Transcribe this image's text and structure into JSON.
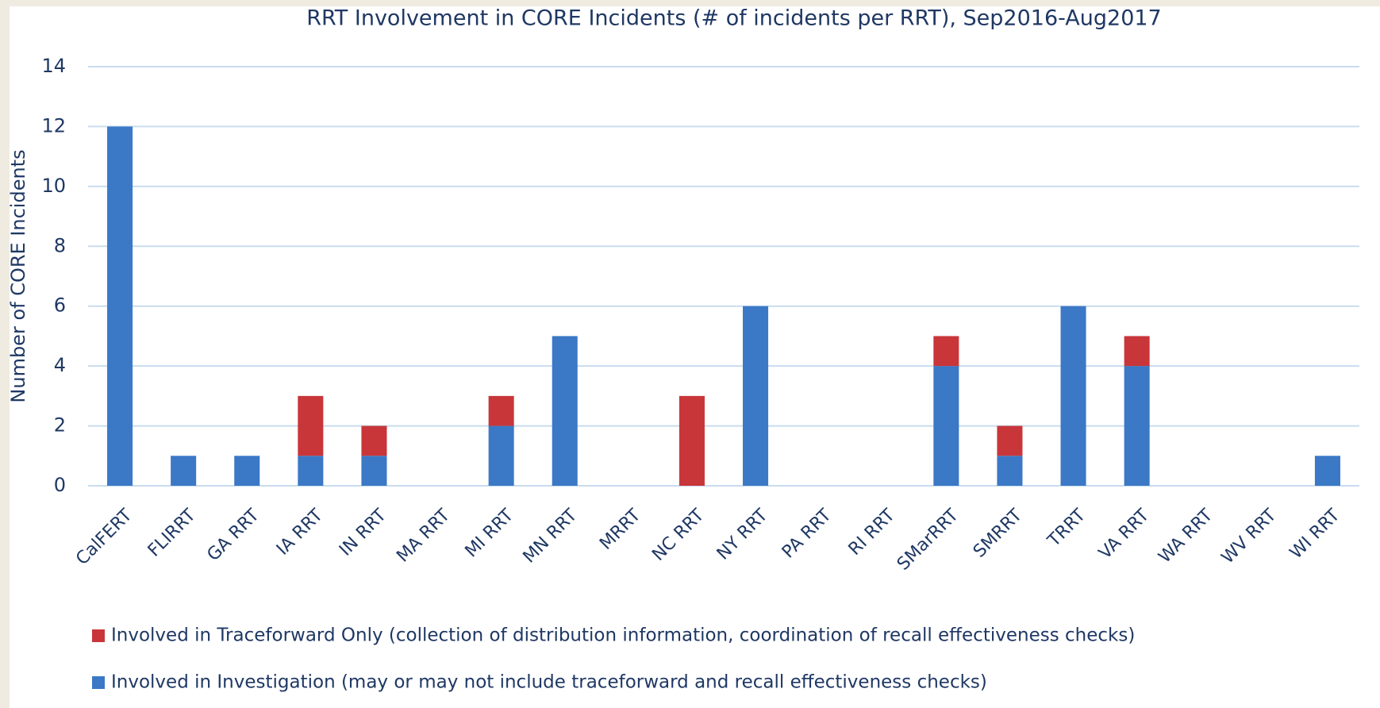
{
  "chart_data": {
    "type": "stacked_bar",
    "title": "RRT Involvement in CORE Incidents (# of incidents per RRT), Sep2016-Aug2017",
    "ylabel": "Number of CORE Incidents",
    "categories": [
      "CalFERT",
      "FLIRRT",
      "GA RRT",
      "IA RRT",
      "IN RRT",
      "MA RRT",
      "MI RRT",
      "MN RRT",
      "MRRT",
      "NC RRT",
      "NY RRT",
      "PA RRT",
      "RI RRT",
      "SMarRRT",
      "SMRRT",
      "TRRT",
      "VA RRT",
      "WA RRT",
      "WV RRT",
      "WI RRT"
    ],
    "series": [
      {
        "name": "Involved in Investigation (may or may not include traceforward and recall effectiveness checks)",
        "color": "#3b78c6",
        "values": [
          12,
          1,
          1,
          1,
          1,
          0,
          2,
          5,
          0,
          0,
          6,
          0,
          0,
          4,
          1,
          6,
          4,
          0,
          0,
          1
        ]
      },
      {
        "name": "Involved in Traceforward Only (collection of distribution information, coordination of recall effectiveness checks)",
        "color": "#c8363a",
        "values": [
          0,
          0,
          0,
          2,
          1,
          0,
          1,
          0,
          0,
          3,
          0,
          0,
          0,
          1,
          1,
          0,
          1,
          0,
          0,
          0
        ]
      }
    ],
    "ylim": [
      0,
      14
    ],
    "yticks": [
      0,
      2,
      4,
      6,
      8,
      10,
      12,
      14
    ],
    "grid": true,
    "legend": "bottom"
  }
}
